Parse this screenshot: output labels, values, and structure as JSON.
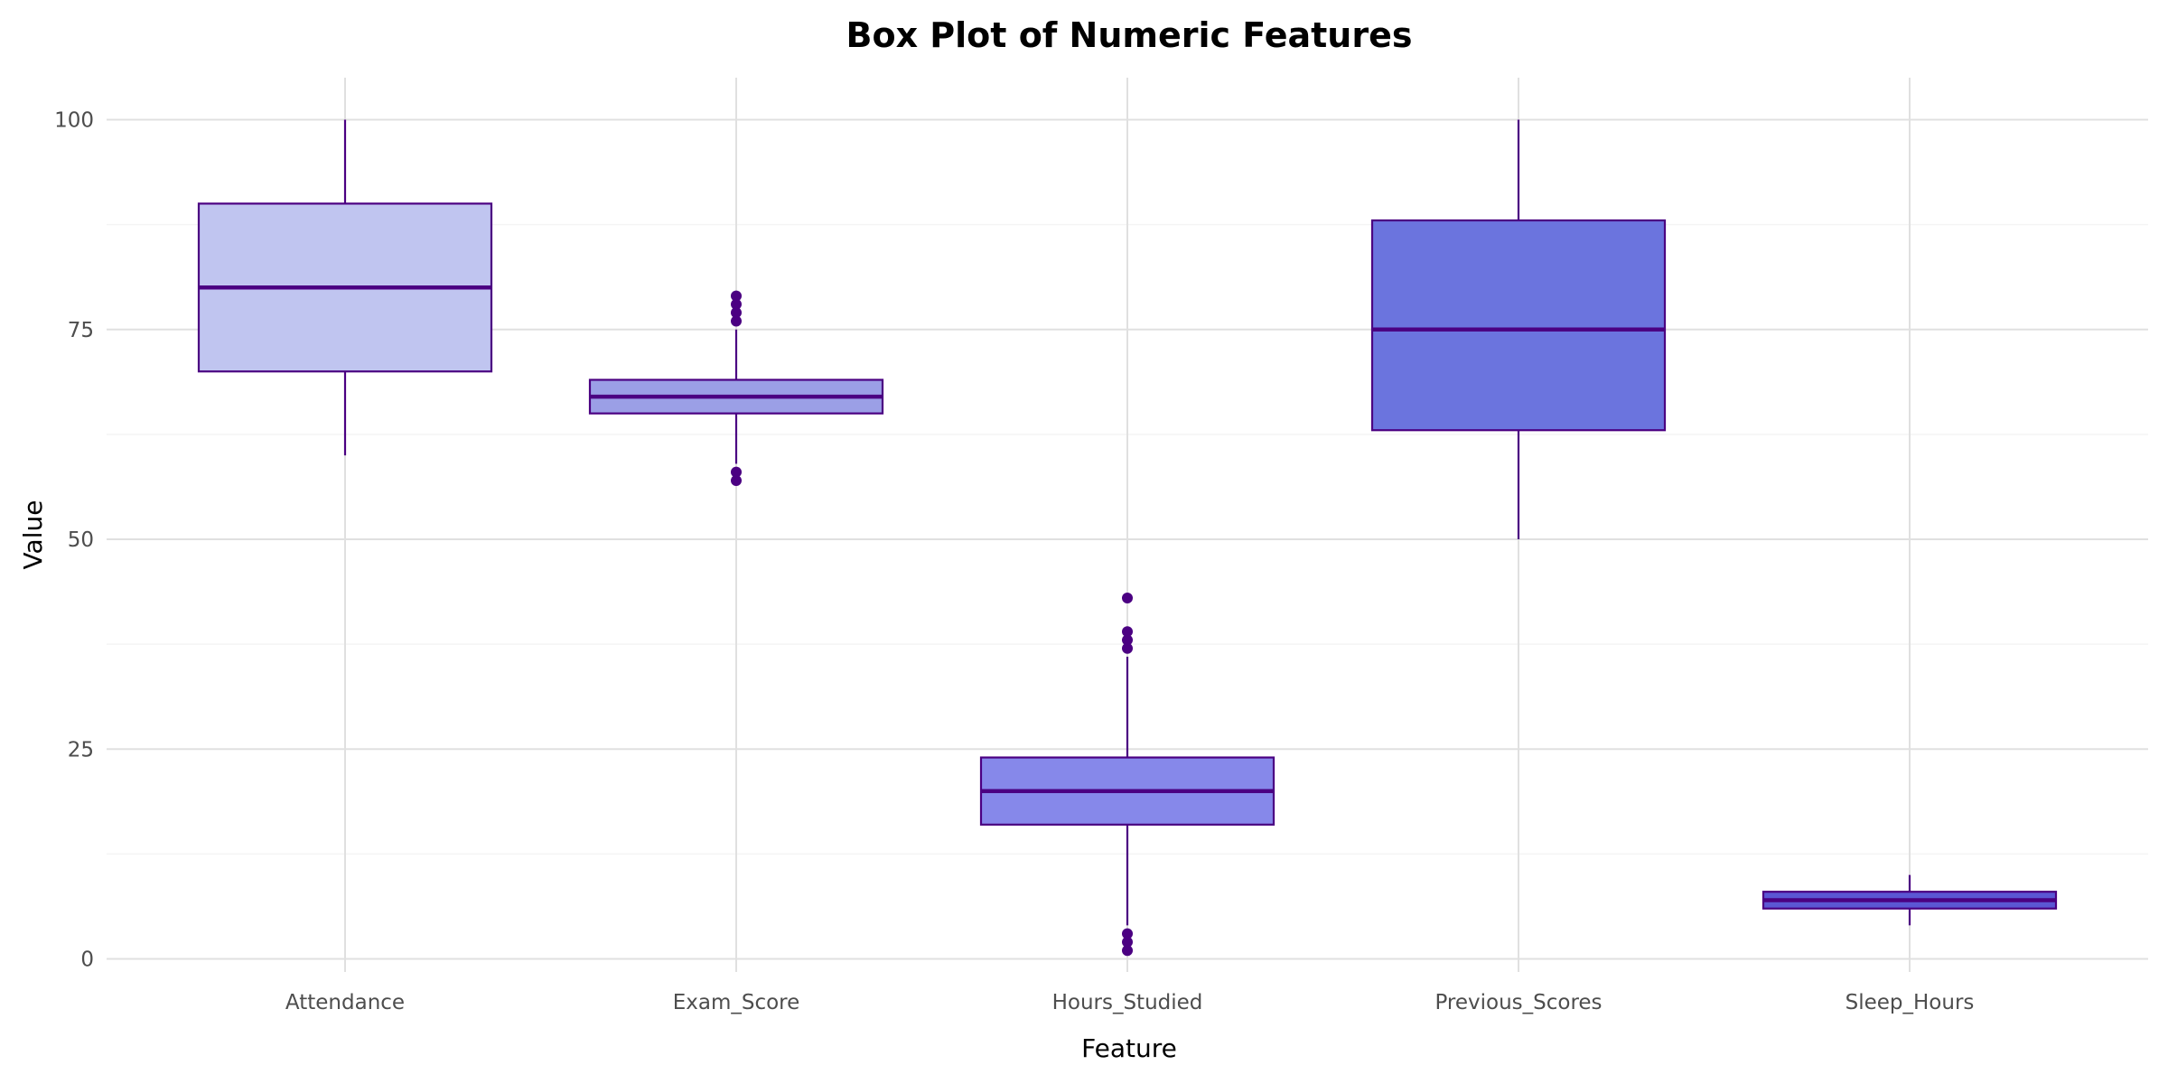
{
  "chart_data": {
    "type": "box",
    "title": "Box Plot of Numeric Features",
    "xlabel": "Feature",
    "ylabel": "Value",
    "ylim": [
      -5,
      105
    ],
    "yticks": [
      "0",
      "25",
      "50",
      "75",
      "100"
    ],
    "grid": true,
    "legend": "none",
    "categories": [
      "Attendance",
      "Exam_Score",
      "Hours_Studied",
      "Previous_Scores",
      "Sleep_Hours"
    ],
    "boxes": [
      {
        "category": "Attendance",
        "whisker_low": 60,
        "q1": 70,
        "median": 80,
        "q3": 90,
        "whisker_high": 100,
        "outliers": [],
        "fill": "#c0c5f0"
      },
      {
        "category": "Exam_Score",
        "whisker_low": 59,
        "q1": 65,
        "median": 67,
        "q3": 69,
        "whisker_high": 75,
        "outliers": [
          57,
          58,
          76,
          77,
          78,
          79
        ],
        "fill": "#9b9fe6"
      },
      {
        "category": "Hours_Studied",
        "whisker_low": 4,
        "q1": 16,
        "median": 20,
        "q3": 24,
        "whisker_high": 36,
        "outliers": [
          1,
          2,
          3,
          37,
          38,
          39,
          43
        ],
        "fill": "#8688ea"
      },
      {
        "category": "Previous_Scores",
        "whisker_low": 50,
        "q1": 63,
        "median": 75,
        "q3": 88,
        "whisker_high": 100,
        "outliers": [],
        "fill": "#6b74de"
      },
      {
        "category": "Sleep_Hours",
        "whisker_low": 4,
        "q1": 6,
        "median": 7,
        "q3": 8,
        "whisker_high": 10,
        "outliers": [],
        "fill": "#5b57d4"
      }
    ],
    "colors": {
      "stroke": "#4b0082",
      "grid_major": "#e0e0e0",
      "grid_minor": "#f4f4f4"
    }
  }
}
